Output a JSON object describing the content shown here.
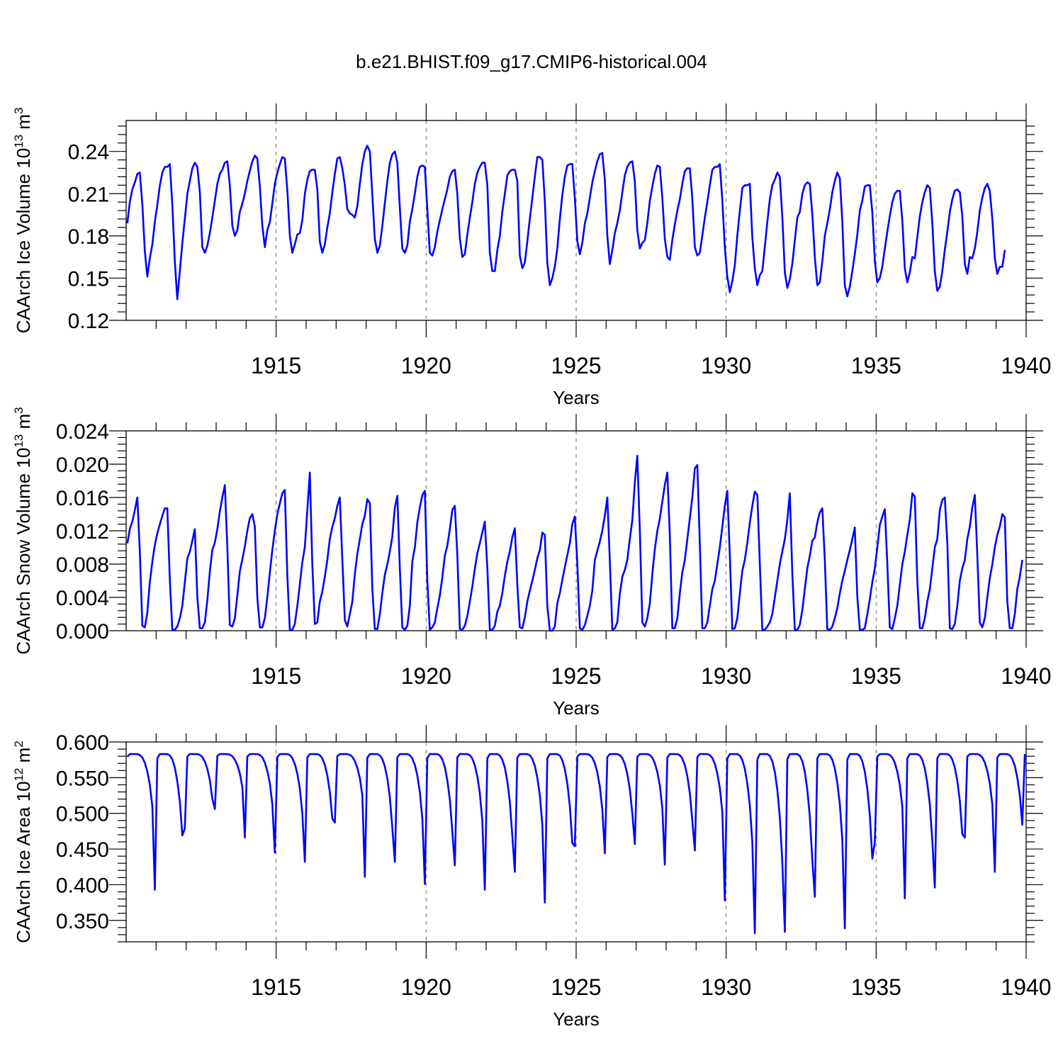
{
  "title": "b.e21.BHIST.f09_g17.CMIP6-historical.004",
  "colors": {
    "series": "#0000ff",
    "axis": "#000000",
    "grid": "#666666"
  },
  "chart_data": [
    {
      "type": "line",
      "ylabel": "CAArch Ice Volume 10",
      "ylabel_exp": "13",
      "ylabel_unit": " m",
      "ylabel_unit_exp": "3",
      "xlabel": "Years",
      "xlim": [
        1910,
        1940
      ],
      "ylim": [
        0.12,
        0.262
      ],
      "yticks": [
        0.12,
        0.15,
        0.18,
        0.21,
        0.24
      ],
      "ytick_labels": [
        "0.12",
        "0.15",
        "0.18",
        "0.21",
        "0.24"
      ],
      "xticks": [
        1915,
        1920,
        1925,
        1930,
        1935,
        1940
      ],
      "xtick_labels": [
        "1915",
        "1920",
        "1925",
        "1930",
        "1935",
        "1940"
      ],
      "grid": "dashed vertical at 1915, 1920, 1925, 1930, 1935",
      "x": {
        "start": 1910.04,
        "step": 0.08333
      },
      "series": [
        {
          "values": [
            0.189,
            0.204,
            0.213,
            0.218,
            0.224,
            0.225,
            0.202,
            0.169,
            0.151,
            0.164,
            0.174,
            0.19,
            0.202,
            0.216,
            0.225,
            0.229,
            0.229,
            0.231,
            0.202,
            0.162,
            0.135,
            0.155,
            0.175,
            0.192,
            0.21,
            0.219,
            0.228,
            0.232,
            0.229,
            0.211,
            0.172,
            0.168,
            0.173,
            0.182,
            0.193,
            0.205,
            0.217,
            0.224,
            0.227,
            0.232,
            0.233,
            0.216,
            0.187,
            0.18,
            0.184,
            0.197,
            0.203,
            0.21,
            0.219,
            0.226,
            0.233,
            0.237,
            0.235,
            0.215,
            0.187,
            0.172,
            0.184,
            0.19,
            0.203,
            0.217,
            0.225,
            0.231,
            0.236,
            0.235,
            0.212,
            0.18,
            0.168,
            0.174,
            0.181,
            0.182,
            0.191,
            0.21,
            0.22,
            0.226,
            0.227,
            0.227,
            0.213,
            0.176,
            0.168,
            0.174,
            0.186,
            0.196,
            0.211,
            0.224,
            0.235,
            0.236,
            0.228,
            0.216,
            0.199,
            0.196,
            0.195,
            0.193,
            0.201,
            0.217,
            0.231,
            0.24,
            0.244,
            0.24,
            0.209,
            0.178,
            0.168,
            0.173,
            0.187,
            0.203,
            0.219,
            0.232,
            0.238,
            0.24,
            0.232,
            0.2,
            0.171,
            0.168,
            0.173,
            0.19,
            0.199,
            0.21,
            0.222,
            0.229,
            0.23,
            0.229,
            0.199,
            0.168,
            0.166,
            0.172,
            0.183,
            0.191,
            0.199,
            0.206,
            0.213,
            0.222,
            0.226,
            0.227,
            0.21,
            0.178,
            0.165,
            0.167,
            0.181,
            0.193,
            0.204,
            0.217,
            0.225,
            0.229,
            0.232,
            0.232,
            0.216,
            0.168,
            0.155,
            0.155,
            0.17,
            0.18,
            0.197,
            0.21,
            0.223,
            0.226,
            0.227,
            0.227,
            0.219,
            0.166,
            0.157,
            0.161,
            0.176,
            0.192,
            0.207,
            0.222,
            0.236,
            0.236,
            0.234,
            0.205,
            0.161,
            0.145,
            0.15,
            0.158,
            0.171,
            0.192,
            0.209,
            0.222,
            0.23,
            0.231,
            0.231,
            0.207,
            0.176,
            0.167,
            0.175,
            0.189,
            0.196,
            0.207,
            0.218,
            0.226,
            0.233,
            0.238,
            0.239,
            0.22,
            0.18,
            0.16,
            0.17,
            0.182,
            0.189,
            0.198,
            0.211,
            0.223,
            0.229,
            0.232,
            0.233,
            0.219,
            0.184,
            0.171,
            0.175,
            0.177,
            0.189,
            0.205,
            0.215,
            0.224,
            0.23,
            0.229,
            0.207,
            0.178,
            0.165,
            0.163,
            0.177,
            0.188,
            0.198,
            0.206,
            0.217,
            0.226,
            0.228,
            0.228,
            0.207,
            0.172,
            0.166,
            0.168,
            0.18,
            0.193,
            0.204,
            0.216,
            0.227,
            0.229,
            0.229,
            0.231,
            0.205,
            0.172,
            0.151,
            0.14,
            0.148,
            0.159,
            0.18,
            0.198,
            0.214,
            0.216,
            0.216,
            0.217,
            0.179,
            0.157,
            0.145,
            0.152,
            0.155,
            0.172,
            0.19,
            0.206,
            0.216,
            0.22,
            0.225,
            0.222,
            0.194,
            0.154,
            0.143,
            0.149,
            0.16,
            0.177,
            0.193,
            0.197,
            0.21,
            0.216,
            0.218,
            0.217,
            0.195,
            0.165,
            0.145,
            0.147,
            0.162,
            0.18,
            0.189,
            0.199,
            0.211,
            0.219,
            0.225,
            0.221,
            0.19,
            0.145,
            0.137,
            0.144,
            0.155,
            0.167,
            0.181,
            0.198,
            0.205,
            0.215,
            0.216,
            0.216,
            0.197,
            0.162,
            0.147,
            0.15,
            0.158,
            0.171,
            0.183,
            0.194,
            0.204,
            0.21,
            0.212,
            0.212,
            0.191,
            0.157,
            0.147,
            0.154,
            0.165,
            0.164,
            0.179,
            0.194,
            0.204,
            0.211,
            0.216,
            0.214,
            0.189,
            0.155,
            0.141,
            0.144,
            0.155,
            0.17,
            0.183,
            0.197,
            0.206,
            0.212,
            0.213,
            0.211,
            0.194,
            0.16,
            0.153,
            0.165,
            0.164,
            0.171,
            0.183,
            0.198,
            0.207,
            0.214,
            0.217,
            0.212,
            0.192,
            0.164,
            0.153,
            0.158,
            0.158,
            0.17
          ]
        }
      ]
    },
    {
      "type": "line",
      "ylabel": "CAArch Snow Volume 10",
      "ylabel_exp": "13",
      "ylabel_unit": " m",
      "ylabel_unit_exp": "3",
      "xlabel": "Years",
      "xlim": [
        1910,
        1940
      ],
      "ylim": [
        0.0,
        0.024
      ],
      "yticks": [
        0.0,
        0.004,
        0.008,
        0.012,
        0.016,
        0.02,
        0.024
      ],
      "ytick_labels": [
        "0.000",
        "0.004",
        "0.008",
        "0.012",
        "0.016",
        "0.020",
        "0.024"
      ],
      "xticks": [
        1915,
        1920,
        1925,
        1930,
        1935,
        1940
      ],
      "xtick_labels": [
        "1915",
        "1920",
        "1925",
        "1930",
        "1935",
        "1940"
      ],
      "grid": "dashed vertical at 1915, 1920, 1925, 1930, 1935",
      "x": {
        "start": 1910.04,
        "step": 0.08333
      },
      "series": [
        {
          "values": [
            0.0105,
            0.0122,
            0.0131,
            0.0145,
            0.016,
            0.0095,
            0.0006,
            0.0004,
            0.0022,
            0.0058,
            0.0083,
            0.0103,
            0.0117,
            0.0128,
            0.0138,
            0.0147,
            0.0147,
            0.006,
            0.0001,
            0.0001,
            0.0005,
            0.0015,
            0.003,
            0.0058,
            0.0087,
            0.0095,
            0.0108,
            0.0122,
            0.004,
            0.0003,
            0.0003,
            0.001,
            0.0037,
            0.0071,
            0.0097,
            0.0106,
            0.0122,
            0.0143,
            0.016,
            0.0175,
            0.01,
            0.0007,
            0.0005,
            0.0015,
            0.0042,
            0.0071,
            0.0086,
            0.0101,
            0.012,
            0.0135,
            0.014,
            0.0125,
            0.004,
            0.0004,
            0.0004,
            0.0015,
            0.004,
            0.007,
            0.0097,
            0.012,
            0.014,
            0.0153,
            0.0165,
            0.0169,
            0.0065,
            0.0001,
            0.0001,
            0.0008,
            0.003,
            0.0056,
            0.0082,
            0.0101,
            0.0145,
            0.019,
            0.008,
            0.0008,
            0.001,
            0.0035,
            0.0047,
            0.0065,
            0.0085,
            0.011,
            0.0125,
            0.0135,
            0.015,
            0.016,
            0.0085,
            0.0013,
            0.0005,
            0.002,
            0.0035,
            0.0068,
            0.0092,
            0.011,
            0.0128,
            0.0138,
            0.0158,
            0.0153,
            0.005,
            0.0002,
            0.0002,
            0.002,
            0.0045,
            0.0067,
            0.008,
            0.0095,
            0.0113,
            0.0148,
            0.0162,
            0.0075,
            0.0004,
            0.0001,
            0.0006,
            0.003,
            0.0083,
            0.01,
            0.013,
            0.0148,
            0.0163,
            0.0168,
            0.006,
            0.0001,
            0.0004,
            0.001,
            0.0027,
            0.0042,
            0.0064,
            0.009,
            0.0102,
            0.0122,
            0.0145,
            0.015,
            0.0092,
            0.0002,
            0.0001,
            0.0006,
            0.0018,
            0.0035,
            0.0053,
            0.0074,
            0.0093,
            0.0105,
            0.0118,
            0.0131,
            0.0075,
            0.0001,
            0.0001,
            0.0006,
            0.0023,
            0.003,
            0.0045,
            0.0066,
            0.0083,
            0.0095,
            0.0112,
            0.0123,
            0.0055,
            0.0004,
            0.0003,
            0.0016,
            0.0035,
            0.0048,
            0.006,
            0.0073,
            0.0087,
            0.0097,
            0.0118,
            0.0115,
            0.003,
            0.0,
            0.0,
            0.0005,
            0.0033,
            0.0045,
            0.0061,
            0.0076,
            0.0091,
            0.0105,
            0.0128,
            0.0137,
            0.008,
            0.0003,
            0.0001,
            0.0007,
            0.0018,
            0.003,
            0.0048,
            0.0085,
            0.0096,
            0.0107,
            0.012,
            0.0138,
            0.016,
            0.0085,
            0.0001,
            0.0003,
            0.001,
            0.0044,
            0.0065,
            0.0073,
            0.0085,
            0.011,
            0.0133,
            0.0178,
            0.021,
            0.012,
            0.001,
            0.0005,
            0.0015,
            0.0033,
            0.0068,
            0.0098,
            0.012,
            0.0135,
            0.0155,
            0.0175,
            0.019,
            0.0115,
            0.0003,
            0.0003,
            0.0015,
            0.0045,
            0.007,
            0.0085,
            0.011,
            0.0135,
            0.016,
            0.0195,
            0.0199,
            0.0105,
            0.0003,
            0.0003,
            0.001,
            0.003,
            0.005,
            0.006,
            0.008,
            0.01,
            0.0125,
            0.015,
            0.0168,
            0.009,
            0.0002,
            0.0003,
            0.0015,
            0.0045,
            0.0072,
            0.0085,
            0.0105,
            0.013,
            0.015,
            0.0167,
            0.0163,
            0.008,
            0.0001,
            0.0001,
            0.0005,
            0.001,
            0.002,
            0.004,
            0.006,
            0.008,
            0.0095,
            0.011,
            0.0133,
            0.0165,
            0.007,
            0.0001,
            0.0001,
            0.0007,
            0.0025,
            0.005,
            0.0075,
            0.009,
            0.0108,
            0.0112,
            0.013,
            0.0142,
            0.0147,
            0.0085,
            0.0002,
            0.0001,
            0.0005,
            0.0015,
            0.0027,
            0.0045,
            0.006,
            0.0072,
            0.0085,
            0.0097,
            0.011,
            0.0124,
            0.004,
            0.0001,
            0.0001,
            0.0003,
            0.002,
            0.0038,
            0.0058,
            0.0075,
            0.01,
            0.0127,
            0.0137,
            0.0146,
            0.008,
            0.0004,
            0.0002,
            0.0015,
            0.003,
            0.0055,
            0.008,
            0.0095,
            0.0115,
            0.0133,
            0.0165,
            0.0161,
            0.006,
            0.0003,
            0.0003,
            0.0015,
            0.0035,
            0.005,
            0.0075,
            0.01,
            0.011,
            0.0145,
            0.0157,
            0.016,
            0.0105,
            0.0003,
            0.0002,
            0.0008,
            0.003,
            0.006,
            0.0075,
            0.0085,
            0.011,
            0.0125,
            0.0148,
            0.0163,
            0.009,
            0.001,
            0.0004,
            0.0015,
            0.004,
            0.0063,
            0.008,
            0.01,
            0.0115,
            0.0125,
            0.014,
            0.0136,
            0.0035,
            0.0003,
            0.0003,
            0.002,
            0.005,
            0.0065,
            0.0085
          ]
        }
      ]
    },
    {
      "type": "line",
      "ylabel": "CAArch Ice Area 10",
      "ylabel_exp": "12",
      "ylabel_unit": " m",
      "ylabel_unit_exp": "2",
      "xlabel": "Years",
      "xlim": [
        1910,
        1940
      ],
      "ylim": [
        0.32,
        0.6
      ],
      "yticks": [
        0.35,
        0.4,
        0.45,
        0.5,
        0.55,
        0.6
      ],
      "ytick_labels": [
        "0.350",
        "0.400",
        "0.450",
        "0.500",
        "0.550",
        "0.600"
      ],
      "xticks": [
        1915,
        1920,
        1925,
        1930,
        1935,
        1940
      ],
      "xtick_labels": [
        "1915",
        "1920",
        "1925",
        "1930",
        "1935",
        "1940"
      ],
      "grid": "dashed vertical at 1915, 1920, 1925, 1930, 1935",
      "x": {
        "start": 1910.04,
        "step": 0.08333
      },
      "series": [
        {
          "minima": [
            0.461,
            0.393,
            0.479,
            0.506,
            0.466,
            0.445,
            0.432,
            0.487,
            0.411,
            0.432,
            0.401,
            0.427,
            0.393,
            0.418,
            0.375,
            0.454,
            0.444,
            0.457,
            0.428,
            0.448,
            0.378,
            0.332,
            0.334,
            0.383,
            0.339,
            0.46,
            0.381,
            0.396,
            0.466,
            0.418
          ]
        }
      ]
    }
  ]
}
